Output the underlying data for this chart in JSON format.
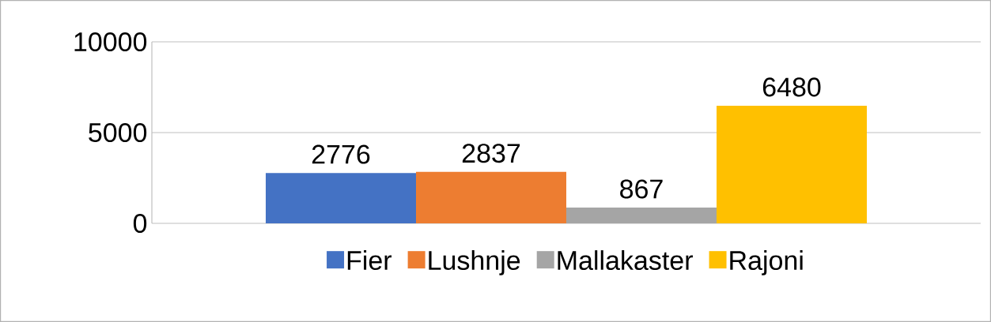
{
  "chart_data": {
    "type": "bar",
    "categories": [
      null
    ],
    "series": [
      {
        "name": "Fier",
        "color": "#4472c4",
        "values": [
          2776
        ]
      },
      {
        "name": "Lushnje",
        "color": "#ed7d31",
        "values": [
          2837
        ]
      },
      {
        "name": "Mallakaster",
        "color": "#a5a5a5",
        "values": [
          867
        ]
      },
      {
        "name": "Rajoni",
        "color": "#ffc000",
        "values": [
          6480
        ]
      }
    ],
    "ylim": [
      0,
      10000
    ],
    "yticks": [
      0,
      5000,
      10000
    ],
    "grid": "y",
    "legend": "bottom",
    "data_labels": true
  }
}
